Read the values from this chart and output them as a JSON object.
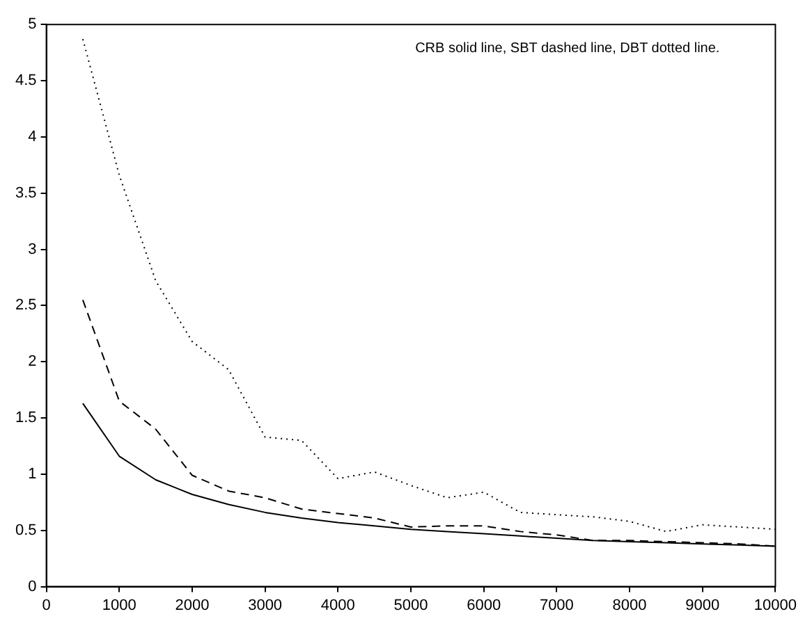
{
  "chart_data": {
    "type": "line",
    "annotations": [
      "CRB solid line, SBT dashed line, DBT dotted line."
    ],
    "x": [
      500,
      1000,
      1500,
      2000,
      2500,
      3000,
      3500,
      4000,
      4500,
      5000,
      5500,
      6000,
      6500,
      7000,
      7500,
      8000,
      8500,
      9000,
      9500,
      10000
    ],
    "series": [
      {
        "color": "#000000",
        "line_style": "solid",
        "values": [
          1.63,
          1.16,
          0.95,
          0.82,
          0.73,
          0.66,
          0.61,
          0.57,
          0.54,
          0.51,
          0.49,
          0.47,
          0.45,
          0.43,
          0.41,
          0.4,
          0.39,
          0.38,
          0.37,
          0.36
        ]
      },
      {
        "color": "#000000",
        "line_style": "dashed",
        "values": [
          2.55,
          1.65,
          1.4,
          0.99,
          0.85,
          0.79,
          0.69,
          0.65,
          0.61,
          0.53,
          0.54,
          0.54,
          0.49,
          0.46,
          0.41,
          0.41,
          0.4,
          0.39,
          0.38,
          0.36
        ]
      },
      {
        "color": "#000000",
        "line_style": "dotted",
        "values": [
          4.87,
          3.66,
          2.72,
          2.18,
          1.93,
          1.33,
          1.3,
          0.96,
          1.02,
          0.9,
          0.79,
          0.84,
          0.66,
          0.64,
          0.62,
          0.58,
          0.49,
          0.55,
          0.53,
          0.51
        ]
      }
    ],
    "xlim": [
      0,
      10000
    ],
    "xticks": [
      0,
      1000,
      2000,
      3000,
      4000,
      5000,
      6000,
      7000,
      8000,
      9000,
      10000
    ],
    "ylim": [
      0,
      5
    ],
    "yticks": [
      0,
      0.5,
      1,
      1.5,
      2,
      2.5,
      3,
      3.5,
      4,
      4.5,
      5
    ],
    "legend": false,
    "marker": "none"
  }
}
